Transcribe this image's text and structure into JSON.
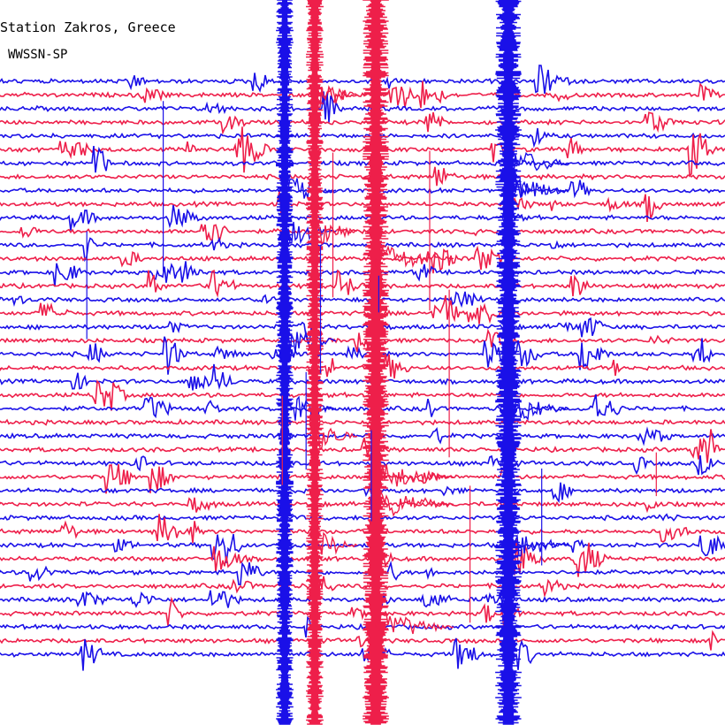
{
  "header": {
    "title": "Station Zakros, Greece",
    "subtitle": "WWSSN-SP"
  },
  "colors": {
    "background": "#ffffff",
    "trace_a": "#1a10e8",
    "trace_b": "#ee1f4a",
    "text": "#000000"
  },
  "chart_data": {
    "type": "line",
    "title": "Station Zakros, Greece",
    "subtitle": "WWSSN-SP",
    "xlabel": "",
    "ylabel": "",
    "grid": false,
    "legend": "none",
    "series": [
      {
        "color": "blue-red alternating",
        "values": []
      }
    ]
  }
}
